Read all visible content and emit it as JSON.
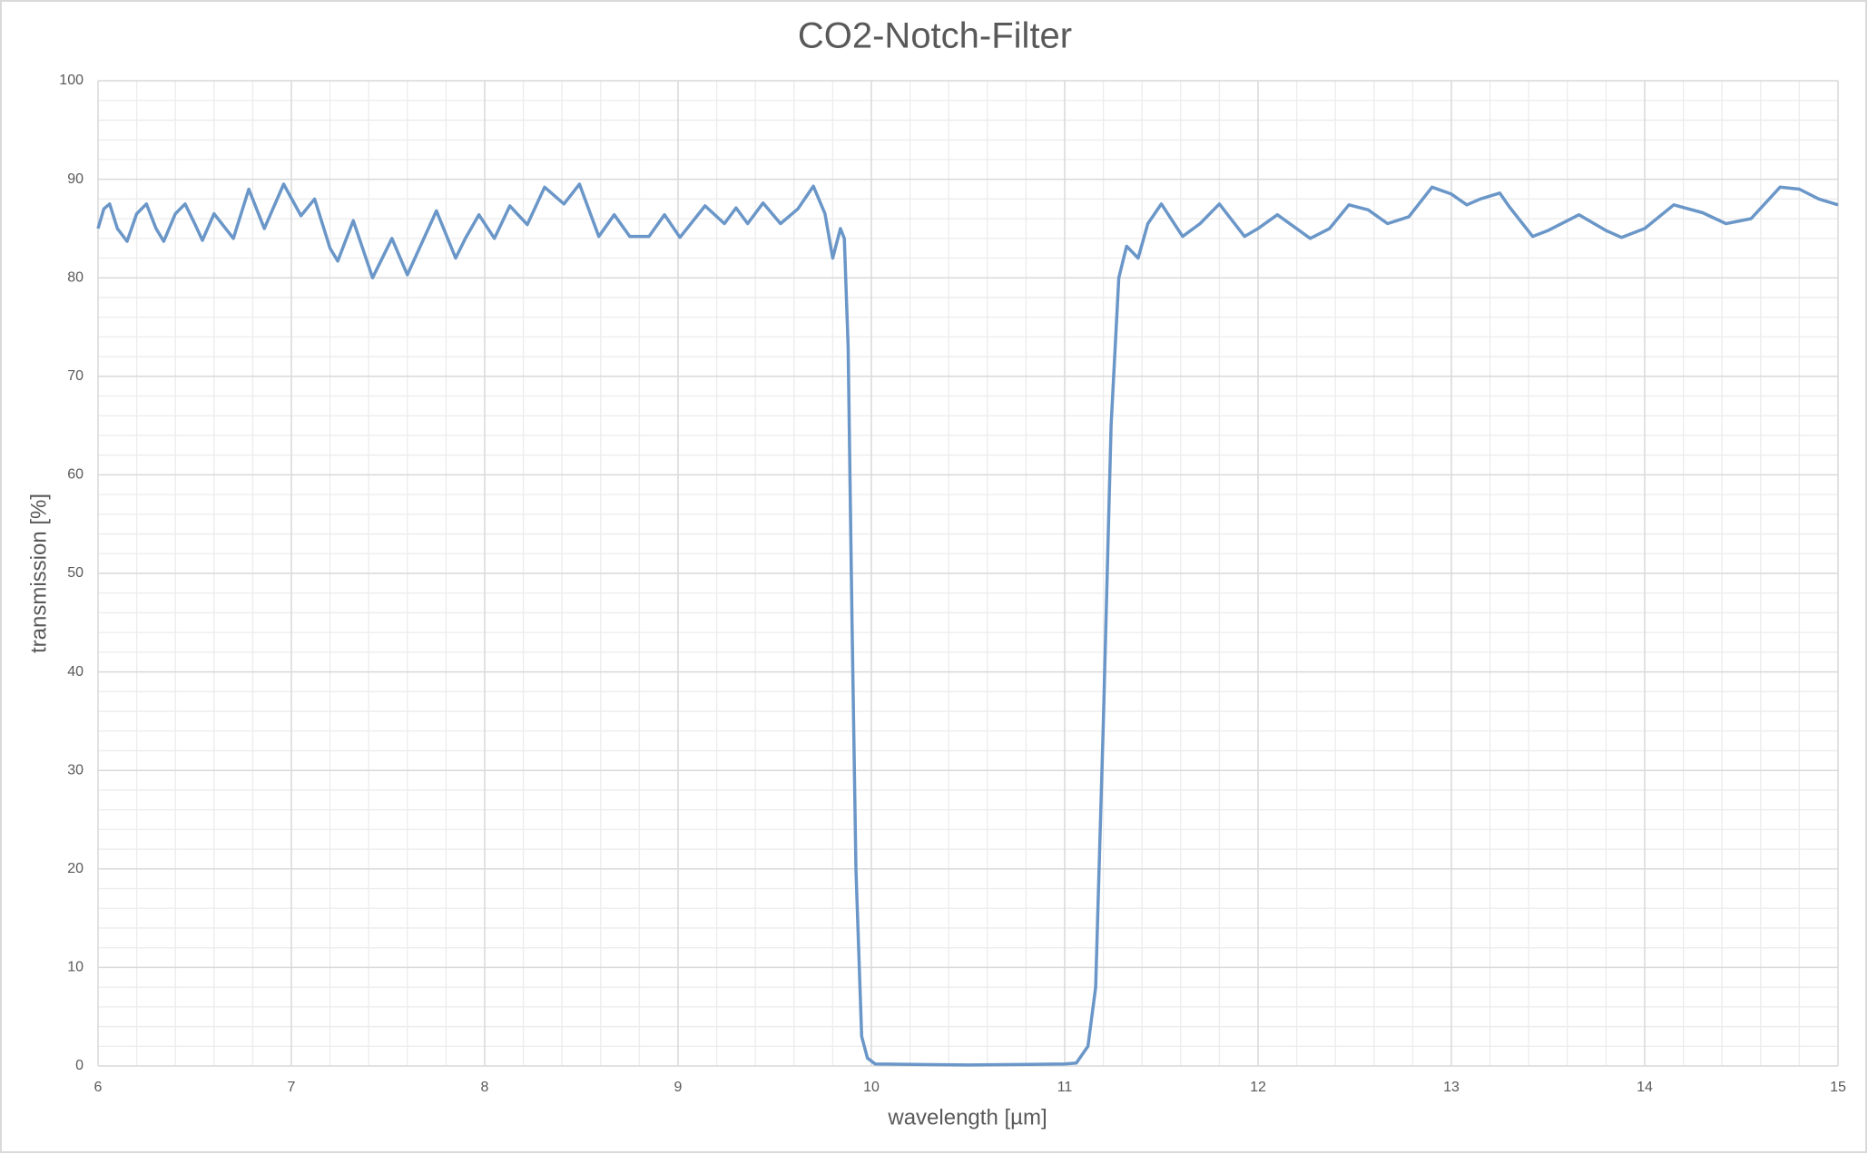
{
  "chart_data": {
    "type": "line",
    "title": "CO2-Notch-Filter",
    "x_label": "wavelength [µm]",
    "y_label": "transmission [%]",
    "xlim": [
      6,
      15
    ],
    "xticks": [
      6,
      7,
      8,
      9,
      10,
      11,
      12,
      13,
      14,
      15
    ],
    "ylim": [
      0,
      100
    ],
    "yticks": [
      0,
      10,
      20,
      30,
      40,
      50,
      60,
      70,
      80,
      90,
      100
    ],
    "grid": true,
    "x": [
      6.0,
      6.03,
      6.06,
      6.1,
      6.15,
      6.2,
      6.25,
      6.3,
      6.34,
      6.4,
      6.45,
      6.5,
      6.54,
      6.6,
      6.7,
      6.78,
      6.86,
      6.96,
      7.05,
      7.12,
      7.2,
      7.24,
      7.32,
      7.42,
      7.52,
      7.6,
      7.75,
      7.85,
      7.9,
      7.97,
      8.05,
      8.13,
      8.22,
      8.31,
      8.41,
      8.49,
      8.59,
      8.67,
      8.75,
      8.85,
      8.93,
      9.01,
      9.14,
      9.24,
      9.3,
      9.36,
      9.44,
      9.53,
      9.62,
      9.7,
      9.76,
      9.8,
      9.84,
      9.86,
      9.88,
      9.9,
      9.92,
      9.95,
      9.98,
      10.02,
      10.5,
      11.0,
      11.06,
      11.12,
      11.16,
      11.2,
      11.24,
      11.28,
      11.32,
      11.38,
      11.43,
      11.5,
      11.61,
      11.7,
      11.8,
      11.93,
      12.0,
      12.1,
      12.27,
      12.37,
      12.47,
      12.57,
      12.67,
      12.78,
      12.9,
      13.0,
      13.08,
      13.15,
      13.25,
      13.3,
      13.42,
      13.5,
      13.66,
      13.8,
      13.88,
      14.0,
      14.15,
      14.3,
      14.42,
      14.55,
      14.7,
      14.8,
      14.9,
      15.0
    ],
    "series": [
      {
        "name": "transmission",
        "color": "#6a96c8",
        "values": [
          85,
          87,
          87.5,
          85,
          83.7,
          86.5,
          87.5,
          85,
          83.7,
          86.5,
          87.5,
          85.5,
          83.8,
          86.5,
          84,
          89,
          85,
          89.5,
          86.3,
          88,
          83,
          81.7,
          85.8,
          80,
          84,
          80.3,
          86.8,
          82,
          84,
          86.4,
          84,
          87.3,
          85.4,
          89.2,
          87.5,
          89.5,
          84.2,
          86.4,
          84.2,
          84.2,
          86.4,
          84.1,
          87.3,
          85.5,
          87.1,
          85.5,
          87.6,
          85.5,
          87,
          89.3,
          86.5,
          82,
          85,
          84,
          73,
          45,
          20,
          3,
          0.8,
          0.2,
          0.1,
          0.2,
          0.3,
          2,
          8,
          35,
          65,
          80,
          83.2,
          82,
          85.5,
          87.5,
          84.2,
          85.5,
          87.5,
          84.2,
          85,
          86.4,
          84,
          85,
          87.4,
          86.9,
          85.5,
          86.2,
          89.2,
          88.5,
          87.4,
          88,
          88.6,
          87.2,
          84.2,
          84.8,
          86.4,
          84.8,
          84.1,
          85,
          87.4,
          86.6,
          85.5,
          86,
          89.2,
          89,
          88,
          87.4
        ]
      }
    ]
  }
}
